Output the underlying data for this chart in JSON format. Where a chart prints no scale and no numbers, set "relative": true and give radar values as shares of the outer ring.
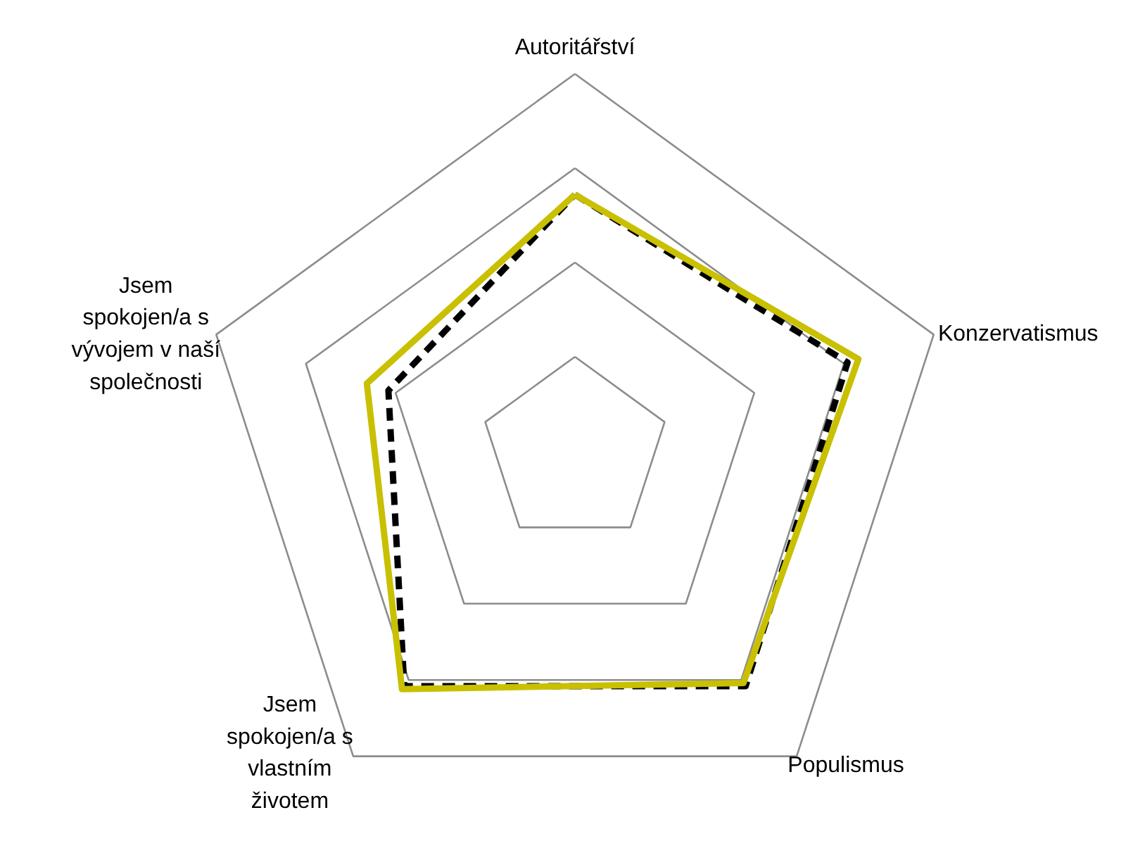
{
  "chart_data": {
    "type": "radar",
    "relative": true,
    "grid": true,
    "categories": [
      "Autoritářství",
      "Konzervatismus",
      "Populismus",
      "Jsem spokojen/a s vlastním životem",
      "Jsem spokojen/a s vývojem v naší společnosti"
    ],
    "series": [
      {
        "color": "#000000",
        "line_style": "dashed",
        "values": [
          0.68,
          0.76,
          0.77,
          0.77,
          0.52
        ]
      },
      {
        "color": "#c8c000",
        "line_style": "solid",
        "values": [
          0.68,
          0.79,
          0.76,
          0.78,
          0.58
        ]
      }
    ]
  }
}
